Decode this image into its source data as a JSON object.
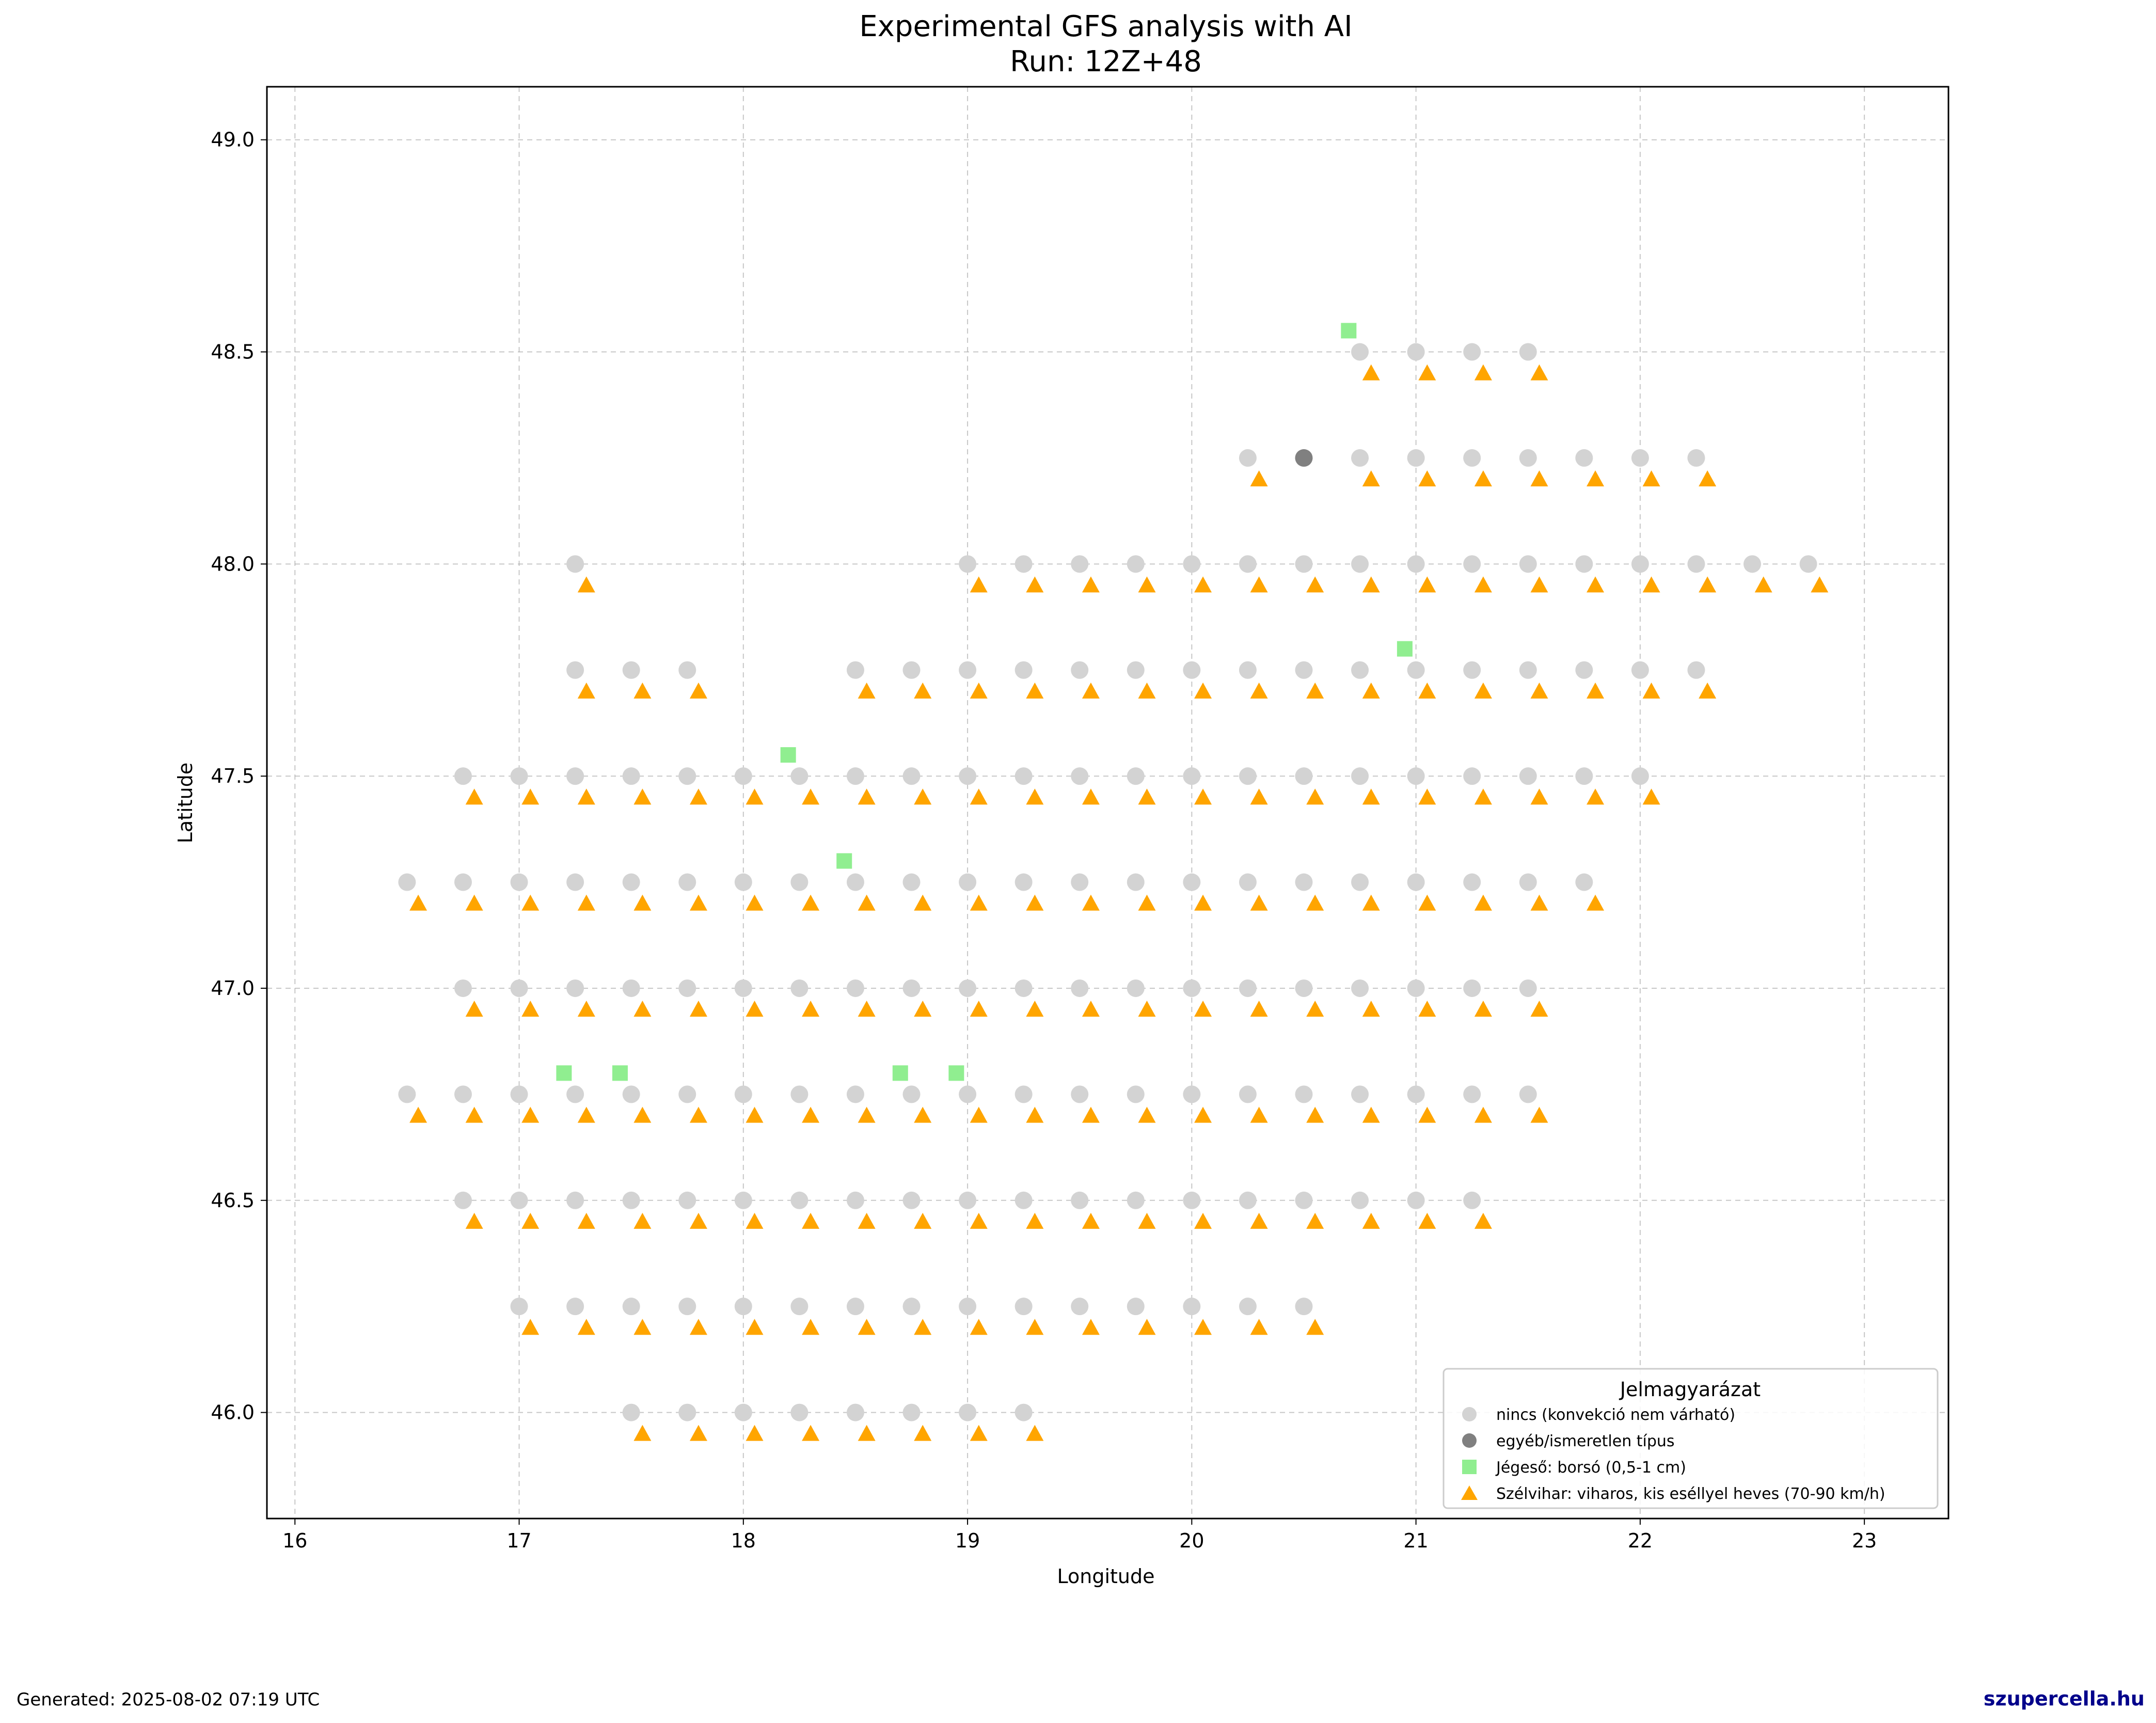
{
  "title_line1": "Experimental GFS analysis with AI",
  "title_line2": "Run: 12Z+48",
  "footer": {
    "generated": "Generated: 2025-08-02 07:19 UTC",
    "brand": "szupercella.hu"
  },
  "chart_data": {
    "type": "scatter",
    "title": "Experimental GFS analysis with AI\nRun: 12Z+48",
    "xlabel": "Longitude",
    "ylabel": "Latitude",
    "xlim": [
      15.875,
      23.375
    ],
    "ylim": [
      45.75,
      49.125
    ],
    "xticks": [
      16,
      17,
      18,
      19,
      20,
      21,
      22,
      23
    ],
    "xtick_labels": [
      "16",
      "17",
      "18",
      "19",
      "20",
      "21",
      "22",
      "23"
    ],
    "yticks": [
      46.0,
      46.5,
      47.0,
      47.5,
      48.0,
      48.5,
      49.0
    ],
    "ytick_labels": [
      "46.0",
      "46.5",
      "47.0",
      "47.5",
      "48.0",
      "48.5",
      "49.0"
    ],
    "grid": true,
    "legend": {
      "title": "Jelmagyarázat",
      "placement": "lower right",
      "entries": [
        {
          "label": "nincs (konvekció nem várható)",
          "marker": "circle",
          "color": "#d3d3d3"
        },
        {
          "label": "egyéb/ismeretlen típus",
          "marker": "circle",
          "color": "#808080"
        },
        {
          "label": "Jégeső: borsó (0,5-1 cm)",
          "marker": "square",
          "color": "#90ee90"
        },
        {
          "label": "Szélvihar: viharos, kis eséllyel heves (70-90 km/h)",
          "marker": "triangle",
          "color": "#ffa500"
        }
      ]
    },
    "grid_spacing": [
      0.25,
      0.25
    ],
    "rows": [
      {
        "lat": 48.5,
        "lons": [
          20.75,
          21.0,
          21.25,
          21.5
        ]
      },
      {
        "lat": 48.25,
        "lons": [
          20.25,
          20.75,
          21.0,
          21.25,
          21.5,
          21.75,
          22.0,
          22.25
        ]
      },
      {
        "lat": 48.0,
        "lons": [
          17.25,
          19.0,
          19.25,
          19.5,
          19.75,
          20.0,
          20.25,
          20.5,
          20.75,
          21.0,
          21.25,
          21.5,
          21.75,
          22.0,
          22.25,
          22.5,
          22.75
        ]
      },
      {
        "lat": 47.75,
        "lons": [
          17.25,
          17.5,
          17.75,
          18.5,
          18.75,
          19.0,
          19.25,
          19.5,
          19.75,
          20.0,
          20.25,
          20.5,
          20.75,
          21.0,
          21.25,
          21.5,
          21.75,
          22.0,
          22.25
        ]
      },
      {
        "lat": 47.5,
        "lons": [
          16.75,
          17.0,
          17.25,
          17.5,
          17.75,
          18.0,
          18.25,
          18.5,
          18.75,
          19.0,
          19.25,
          19.5,
          19.75,
          20.0,
          20.25,
          20.5,
          20.75,
          21.0,
          21.25,
          21.5,
          21.75,
          22.0
        ]
      },
      {
        "lat": 47.25,
        "lons": [
          16.5,
          16.75,
          17.0,
          17.25,
          17.5,
          17.75,
          18.0,
          18.25,
          18.5,
          18.75,
          19.0,
          19.25,
          19.5,
          19.75,
          20.0,
          20.25,
          20.5,
          20.75,
          21.0,
          21.25,
          21.5,
          21.75
        ]
      },
      {
        "lat": 47.0,
        "lons": [
          16.75,
          17.0,
          17.25,
          17.5,
          17.75,
          18.0,
          18.25,
          18.5,
          18.75,
          19.0,
          19.25,
          19.5,
          19.75,
          20.0,
          20.25,
          20.5,
          20.75,
          21.0,
          21.25,
          21.5
        ]
      },
      {
        "lat": 46.75,
        "lons": [
          16.5,
          16.75,
          17.0,
          17.25,
          17.5,
          17.75,
          18.0,
          18.25,
          18.5,
          18.75,
          19.0,
          19.25,
          19.5,
          19.75,
          20.0,
          20.25,
          20.5,
          20.75,
          21.0,
          21.25,
          21.5
        ]
      },
      {
        "lat": 46.5,
        "lons": [
          16.75,
          17.0,
          17.25,
          17.5,
          17.75,
          18.0,
          18.25,
          18.5,
          18.75,
          19.0,
          19.25,
          19.5,
          19.75,
          20.0,
          20.25,
          20.5,
          20.75,
          21.0,
          21.25
        ]
      },
      {
        "lat": 46.25,
        "lons": [
          17.0,
          17.25,
          17.5,
          17.75,
          18.0,
          18.25,
          18.5,
          18.75,
          19.0,
          19.25,
          19.5,
          19.75,
          20.0,
          20.25,
          20.5
        ]
      },
      {
        "lat": 46.0,
        "lons": [
          17.5,
          17.75,
          18.0,
          18.25,
          18.5,
          18.75,
          19.0,
          19.25
        ]
      }
    ],
    "gray_points": [
      [
        20.5,
        48.25
      ]
    ],
    "square_points": [
      [
        20.7,
        48.55
      ],
      [
        20.95,
        47.8
      ],
      [
        18.2,
        47.55
      ],
      [
        18.45,
        47.3
      ],
      [
        17.2,
        46.8
      ],
      [
        17.45,
        46.8
      ],
      [
        18.7,
        46.8
      ],
      [
        18.95,
        46.8
      ]
    ],
    "triangle_offset": [
      0.05,
      -0.05
    ]
  }
}
